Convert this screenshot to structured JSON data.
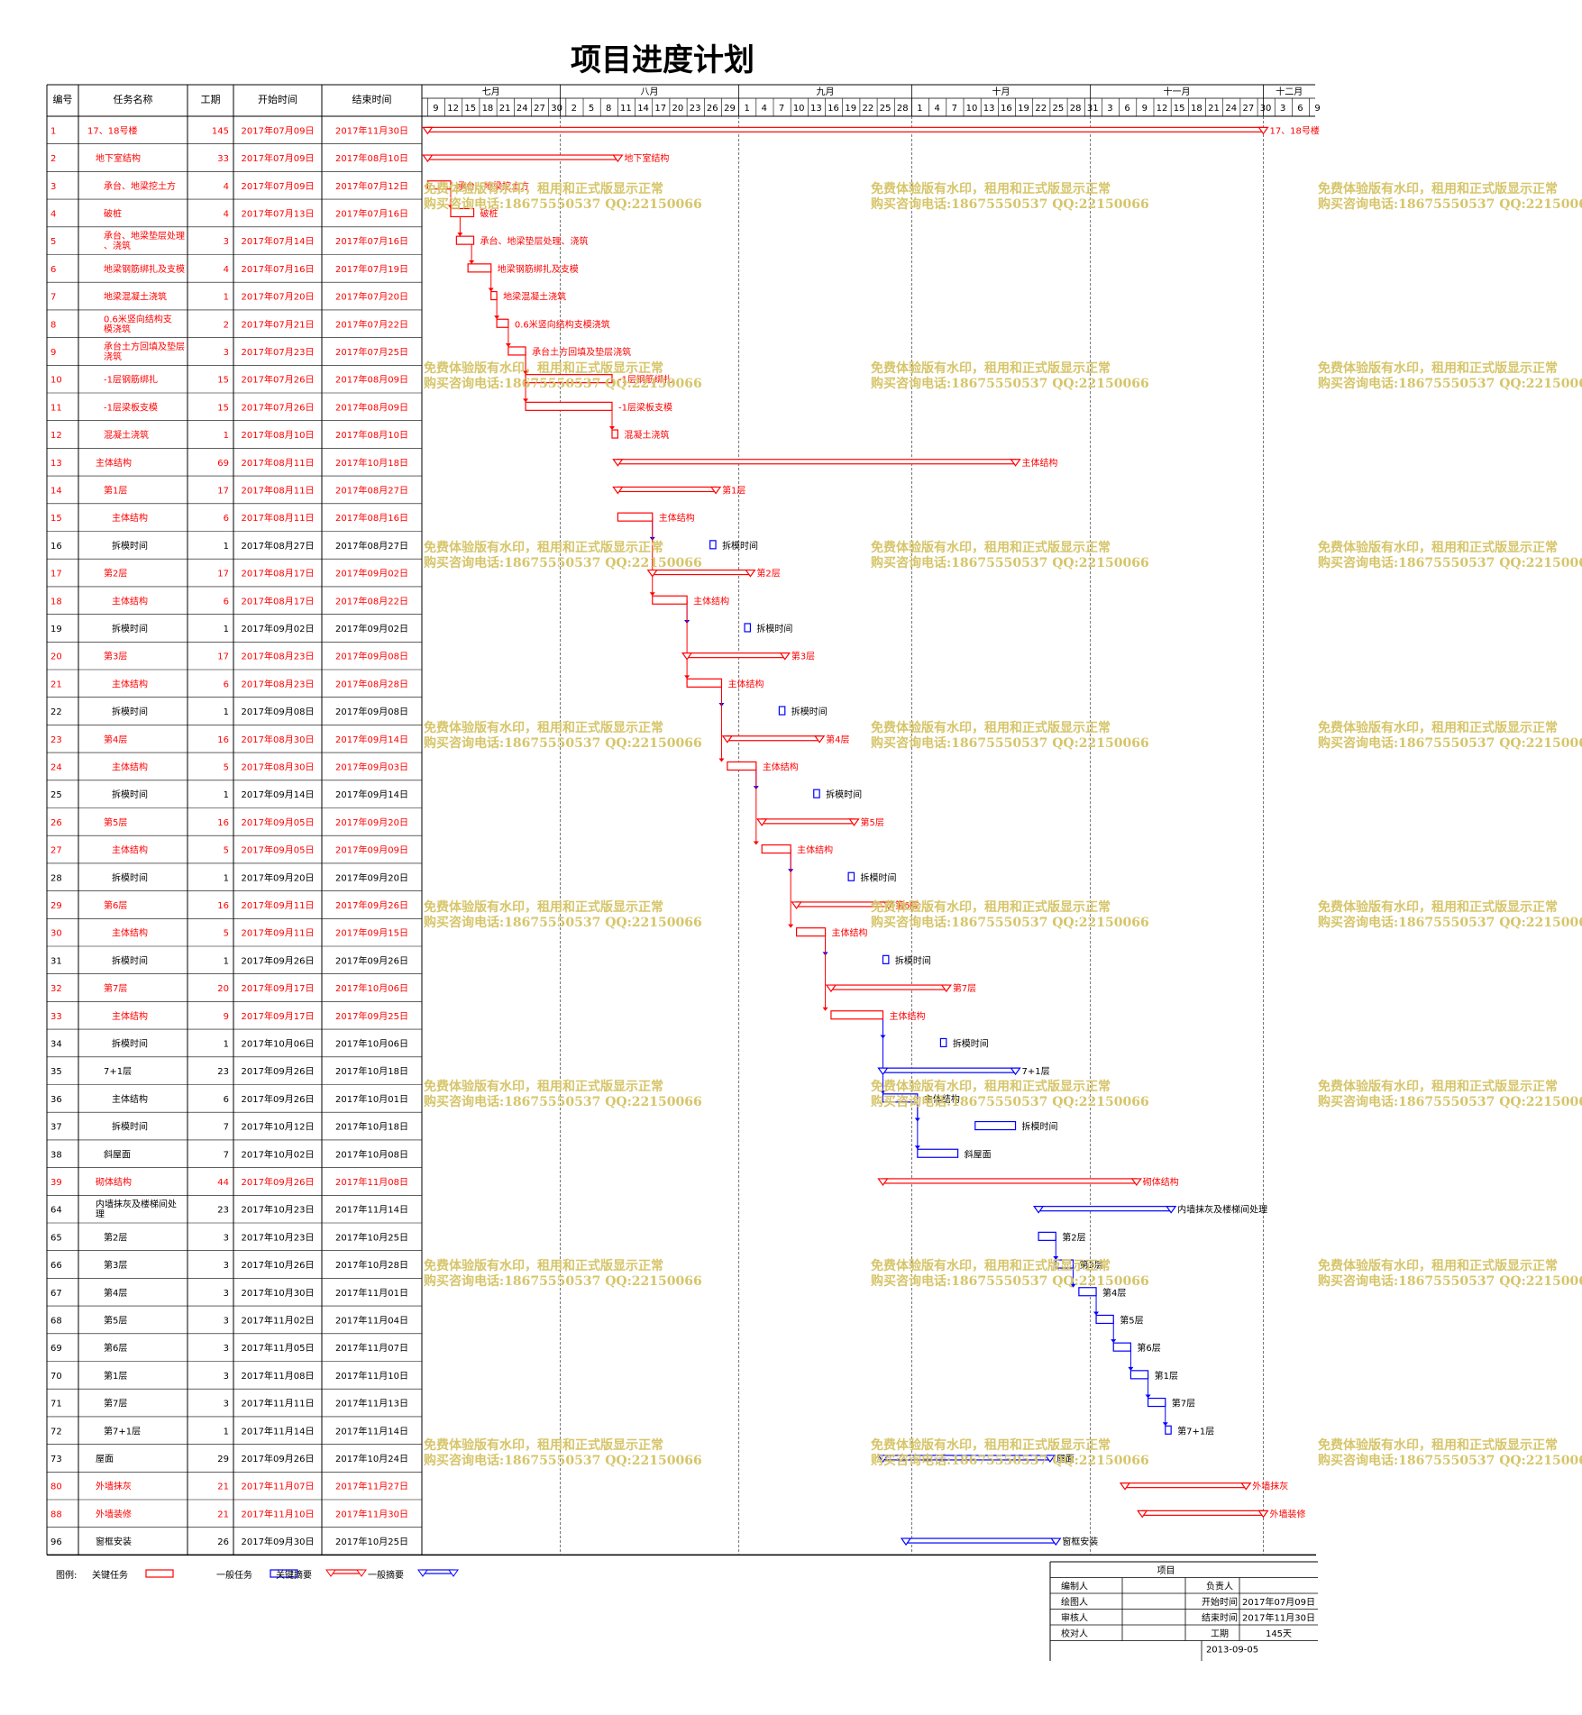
{
  "title": "项目进度计划",
  "columns": [
    "编号",
    "任务名称",
    "工期",
    "开始时间",
    "结束时间"
  ],
  "months": [
    {
      "label": "七月",
      "days": [
        "9",
        "12",
        "15",
        "18",
        "21",
        "24",
        "27",
        "30"
      ]
    },
    {
      "label": "八月",
      "days": [
        "2",
        "5",
        "8",
        "11",
        "14",
        "17",
        "20",
        "23",
        "26",
        "29"
      ]
    },
    {
      "label": "九月",
      "days": [
        "1",
        "4",
        "7",
        "10",
        "13",
        "16",
        "19",
        "22",
        "25",
        "28"
      ]
    },
    {
      "label": "十月",
      "days": [
        "1",
        "4",
        "7",
        "10",
        "13",
        "16",
        "19",
        "22",
        "25",
        "28",
        "31"
      ]
    },
    {
      "label": "十一月",
      "days": [
        "3",
        "6",
        "9",
        "12",
        "15",
        "18",
        "21",
        "24",
        "27",
        "30"
      ]
    },
    {
      "label": "十二月",
      "days": [
        "3",
        "6",
        "9"
      ]
    }
  ],
  "colors": {
    "critical": "#ff0000",
    "normal": "#0000ff",
    "grid": "#000000",
    "watermark": "#d6c56a"
  },
  "watermark": [
    "免费体验版有水印，租用和正式版显示正常",
    "购买咨询电话:18675550537 QQ:22150066"
  ],
  "chart_data": {
    "type": "gantt",
    "title": "项目进度计划",
    "x_axis_start": "2017-07-08",
    "x_axis_end": "2017-12-10",
    "tasks": [
      {
        "id": "1",
        "name": "17、18号楼",
        "dur": "145",
        "start": "2017年07月09日",
        "end": "2017年11月30日",
        "s": "2017-07-09",
        "e": "2017-11-30",
        "kind": "summary",
        "crit": true,
        "indent": 0,
        "label": "17、18号楼"
      },
      {
        "id": "2",
        "name": "地下室结构",
        "dur": "33",
        "start": "2017年07月09日",
        "end": "2017年08月10日",
        "s": "2017-07-09",
        "e": "2017-08-10",
        "kind": "summary",
        "crit": true,
        "indent": 1,
        "label": "地下室结构"
      },
      {
        "id": "3",
        "name": "承台、地梁挖土方",
        "dur": "4",
        "start": "2017年07月09日",
        "end": "2017年07月12日",
        "s": "2017-07-09",
        "e": "2017-07-12",
        "kind": "task",
        "crit": true,
        "indent": 2,
        "label": "承台、地梁挖土方"
      },
      {
        "id": "4",
        "name": "破桩",
        "dur": "4",
        "start": "2017年07月13日",
        "end": "2017年07月16日",
        "s": "2017-07-13",
        "e": "2017-07-16",
        "kind": "task",
        "crit": true,
        "indent": 2,
        "label": "破桩"
      },
      {
        "id": "5",
        "name": "承台、地梁垫层处理、浇筑",
        "dur": "3",
        "start": "2017年07月14日",
        "end": "2017年07月16日",
        "s": "2017-07-14",
        "e": "2017-07-16",
        "kind": "task",
        "crit": true,
        "indent": 2,
        "label": "承台、地梁垫层处理、浇筑"
      },
      {
        "id": "6",
        "name": "地梁钢筋绑扎及支模",
        "dur": "4",
        "start": "2017年07月16日",
        "end": "2017年07月19日",
        "s": "2017-07-16",
        "e": "2017-07-19",
        "kind": "task",
        "crit": true,
        "indent": 2,
        "label": "地梁钢筋绑扎及支模"
      },
      {
        "id": "7",
        "name": "地梁混凝土浇筑",
        "dur": "1",
        "start": "2017年07月20日",
        "end": "2017年07月20日",
        "s": "2017-07-20",
        "e": "2017-07-20",
        "kind": "task",
        "crit": true,
        "indent": 2,
        "label": "地梁混凝土浇筑"
      },
      {
        "id": "8",
        "name": "0.6米竖向结构支模浇筑",
        "dur": "2",
        "start": "2017年07月21日",
        "end": "2017年07月22日",
        "s": "2017-07-21",
        "e": "2017-07-22",
        "kind": "task",
        "crit": true,
        "indent": 2,
        "label": "0.6米竖向结构支模浇筑"
      },
      {
        "id": "9",
        "name": "承台土方回填及垫层浇筑",
        "dur": "3",
        "start": "2017年07月23日",
        "end": "2017年07月25日",
        "s": "2017-07-23",
        "e": "2017-07-25",
        "kind": "task",
        "crit": true,
        "indent": 2,
        "label": "承台土方回填及垫层浇筑"
      },
      {
        "id": "10",
        "name": "-1层钢筋绑扎",
        "dur": "15",
        "start": "2017年07月26日",
        "end": "2017年08月09日",
        "s": "2017-07-26",
        "e": "2017-08-09",
        "kind": "task",
        "crit": true,
        "indent": 2,
        "label": "-1层钢筋绑扎"
      },
      {
        "id": "11",
        "name": "-1层梁板支模",
        "dur": "15",
        "start": "2017年07月26日",
        "end": "2017年08月09日",
        "s": "2017-07-26",
        "e": "2017-08-09",
        "kind": "task",
        "crit": true,
        "indent": 2,
        "label": "-1层梁板支模"
      },
      {
        "id": "12",
        "name": "混凝土浇筑",
        "dur": "1",
        "start": "2017年08月10日",
        "end": "2017年08月10日",
        "s": "2017-08-10",
        "e": "2017-08-10",
        "kind": "task",
        "crit": true,
        "indent": 2,
        "label": "混凝土浇筑"
      },
      {
        "id": "13",
        "name": "主体结构",
        "dur": "69",
        "start": "2017年08月11日",
        "end": "2017年10月18日",
        "s": "2017-08-11",
        "e": "2017-10-18",
        "kind": "summary",
        "crit": true,
        "indent": 1,
        "label": "主体结构"
      },
      {
        "id": "14",
        "name": "第1层",
        "dur": "17",
        "start": "2017年08月11日",
        "end": "2017年08月27日",
        "s": "2017-08-11",
        "e": "2017-08-27",
        "kind": "summary",
        "crit": true,
        "indent": 2,
        "label": "第1层"
      },
      {
        "id": "15",
        "name": "主体结构",
        "dur": "6",
        "start": "2017年08月11日",
        "end": "2017年08月16日",
        "s": "2017-08-11",
        "e": "2017-08-16",
        "kind": "task",
        "crit": true,
        "indent": 3,
        "label": "主体结构"
      },
      {
        "id": "16",
        "name": "拆模时间",
        "dur": "1",
        "start": "2017年08月27日",
        "end": "2017年08月27日",
        "s": "2017-08-27",
        "e": "2017-08-27",
        "kind": "task",
        "crit": false,
        "indent": 3,
        "label": "拆模时间"
      },
      {
        "id": "17",
        "name": "第2层",
        "dur": "17",
        "start": "2017年08月17日",
        "end": "2017年09月02日",
        "s": "2017-08-17",
        "e": "2017-09-02",
        "kind": "summary",
        "crit": true,
        "indent": 2,
        "label": "第2层"
      },
      {
        "id": "18",
        "name": "主体结构",
        "dur": "6",
        "start": "2017年08月17日",
        "end": "2017年08月22日",
        "s": "2017-08-17",
        "e": "2017-08-22",
        "kind": "task",
        "crit": true,
        "indent": 3,
        "label": "主体结构"
      },
      {
        "id": "19",
        "name": "拆模时间",
        "dur": "1",
        "start": "2017年09月02日",
        "end": "2017年09月02日",
        "s": "2017-09-02",
        "e": "2017-09-02",
        "kind": "task",
        "crit": false,
        "indent": 3,
        "label": "拆模时间"
      },
      {
        "id": "20",
        "name": "第3层",
        "dur": "17",
        "start": "2017年08月23日",
        "end": "2017年09月08日",
        "s": "2017-08-23",
        "e": "2017-09-08",
        "kind": "summary",
        "crit": true,
        "indent": 2,
        "label": "第3层"
      },
      {
        "id": "21",
        "name": "主体结构",
        "dur": "6",
        "start": "2017年08月23日",
        "end": "2017年08月28日",
        "s": "2017-08-23",
        "e": "2017-08-28",
        "kind": "task",
        "crit": true,
        "indent": 3,
        "label": "主体结构"
      },
      {
        "id": "22",
        "name": "拆模时间",
        "dur": "1",
        "start": "2017年09月08日",
        "end": "2017年09月08日",
        "s": "2017-09-08",
        "e": "2017-09-08",
        "kind": "task",
        "crit": false,
        "indent": 3,
        "label": "拆模时间"
      },
      {
        "id": "23",
        "name": "第4层",
        "dur": "16",
        "start": "2017年08月30日",
        "end": "2017年09月14日",
        "s": "2017-08-30",
        "e": "2017-09-14",
        "kind": "summary",
        "crit": true,
        "indent": 2,
        "label": "第4层"
      },
      {
        "id": "24",
        "name": "主体结构",
        "dur": "5",
        "start": "2017年08月30日",
        "end": "2017年09月03日",
        "s": "2017-08-30",
        "e": "2017-09-03",
        "kind": "task",
        "crit": true,
        "indent": 3,
        "label": "主体结构"
      },
      {
        "id": "25",
        "name": "拆模时间",
        "dur": "1",
        "start": "2017年09月14日",
        "end": "2017年09月14日",
        "s": "2017-09-14",
        "e": "2017-09-14",
        "kind": "task",
        "crit": false,
        "indent": 3,
        "label": "拆模时间"
      },
      {
        "id": "26",
        "name": "第5层",
        "dur": "16",
        "start": "2017年09月05日",
        "end": "2017年09月20日",
        "s": "2017-09-05",
        "e": "2017-09-20",
        "kind": "summary",
        "crit": true,
        "indent": 2,
        "label": "第5层"
      },
      {
        "id": "27",
        "name": "主体结构",
        "dur": "5",
        "start": "2017年09月05日",
        "end": "2017年09月09日",
        "s": "2017-09-05",
        "e": "2017-09-09",
        "kind": "task",
        "crit": true,
        "indent": 3,
        "label": "主体结构"
      },
      {
        "id": "28",
        "name": "拆模时间",
        "dur": "1",
        "start": "2017年09月20日",
        "end": "2017年09月20日",
        "s": "2017-09-20",
        "e": "2017-09-20",
        "kind": "task",
        "crit": false,
        "indent": 3,
        "label": "拆模时间"
      },
      {
        "id": "29",
        "name": "第6层",
        "dur": "16",
        "start": "2017年09月11日",
        "end": "2017年09月26日",
        "s": "2017-09-11",
        "e": "2017-09-26",
        "kind": "summary",
        "crit": true,
        "indent": 2,
        "label": "第6层"
      },
      {
        "id": "30",
        "name": "主体结构",
        "dur": "5",
        "start": "2017年09月11日",
        "end": "2017年09月15日",
        "s": "2017-09-11",
        "e": "2017-09-15",
        "kind": "task",
        "crit": true,
        "indent": 3,
        "label": "主体结构"
      },
      {
        "id": "31",
        "name": "拆模时间",
        "dur": "1",
        "start": "2017年09月26日",
        "end": "2017年09月26日",
        "s": "2017-09-26",
        "e": "2017-09-26",
        "kind": "task",
        "crit": false,
        "indent": 3,
        "label": "拆模时间"
      },
      {
        "id": "32",
        "name": "第7层",
        "dur": "20",
        "start": "2017年09月17日",
        "end": "2017年10月06日",
        "s": "2017-09-17",
        "e": "2017-10-06",
        "kind": "summary",
        "crit": true,
        "indent": 2,
        "label": "第7层"
      },
      {
        "id": "33",
        "name": "主体结构",
        "dur": "9",
        "start": "2017年09月17日",
        "end": "2017年09月25日",
        "s": "2017-09-17",
        "e": "2017-09-25",
        "kind": "task",
        "crit": true,
        "indent": 3,
        "label": "主体结构"
      },
      {
        "id": "34",
        "name": "拆模时间",
        "dur": "1",
        "start": "2017年10月06日",
        "end": "2017年10月06日",
        "s": "2017-10-06",
        "e": "2017-10-06",
        "kind": "task",
        "crit": false,
        "indent": 3,
        "label": "拆模时间"
      },
      {
        "id": "35",
        "name": "7+1层",
        "dur": "23",
        "start": "2017年09月26日",
        "end": "2017年10月18日",
        "s": "2017-09-26",
        "e": "2017-10-18",
        "kind": "summary",
        "crit": false,
        "indent": 2,
        "label": "7+1层"
      },
      {
        "id": "36",
        "name": "主体结构",
        "dur": "6",
        "start": "2017年09月26日",
        "end": "2017年10月01日",
        "s": "2017-09-26",
        "e": "2017-10-01",
        "kind": "task",
        "crit": false,
        "indent": 3,
        "label": "主体结构"
      },
      {
        "id": "37",
        "name": "拆模时间",
        "dur": "7",
        "start": "2017年10月12日",
        "end": "2017年10月18日",
        "s": "2017-10-12",
        "e": "2017-10-18",
        "kind": "task",
        "crit": false,
        "indent": 3,
        "label": "拆模时间"
      },
      {
        "id": "38",
        "name": "斜屋面",
        "dur": "7",
        "start": "2017年10月02日",
        "end": "2017年10月08日",
        "s": "2017-10-02",
        "e": "2017-10-08",
        "kind": "task",
        "crit": false,
        "indent": 2,
        "label": "斜屋面"
      },
      {
        "id": "39",
        "name": "砌体结构",
        "dur": "44",
        "start": "2017年09月26日",
        "end": "2017年11月08日",
        "s": "2017-09-26",
        "e": "2017-11-08",
        "kind": "summary",
        "crit": true,
        "indent": 1,
        "label": "砌体结构"
      },
      {
        "id": "64",
        "name": "内墙抹灰及楼梯间处理",
        "dur": "23",
        "start": "2017年10月23日",
        "end": "2017年11月14日",
        "s": "2017-10-23",
        "e": "2017-11-14",
        "kind": "summary",
        "crit": false,
        "indent": 1,
        "label": "内墙抹灰及楼梯间处理"
      },
      {
        "id": "65",
        "name": "第2层",
        "dur": "3",
        "start": "2017年10月23日",
        "end": "2017年10月25日",
        "s": "2017-10-23",
        "e": "2017-10-25",
        "kind": "task",
        "crit": false,
        "indent": 2,
        "label": "第2层"
      },
      {
        "id": "66",
        "name": "第3层",
        "dur": "3",
        "start": "2017年10月26日",
        "end": "2017年10月28日",
        "s": "2017-10-26",
        "e": "2017-10-28",
        "kind": "task",
        "crit": false,
        "indent": 2,
        "label": "第3层"
      },
      {
        "id": "67",
        "name": "第4层",
        "dur": "3",
        "start": "2017年10月30日",
        "end": "2017年11月01日",
        "s": "2017-10-30",
        "e": "2017-11-01",
        "kind": "task",
        "crit": false,
        "indent": 2,
        "label": "第4层"
      },
      {
        "id": "68",
        "name": "第5层",
        "dur": "3",
        "start": "2017年11月02日",
        "end": "2017年11月04日",
        "s": "2017-11-02",
        "e": "2017-11-04",
        "kind": "task",
        "crit": false,
        "indent": 2,
        "label": "第5层"
      },
      {
        "id": "69",
        "name": "第6层",
        "dur": "3",
        "start": "2017年11月05日",
        "end": "2017年11月07日",
        "s": "2017-11-05",
        "e": "2017-11-07",
        "kind": "task",
        "crit": false,
        "indent": 2,
        "label": "第6层"
      },
      {
        "id": "70",
        "name": "第1层",
        "dur": "3",
        "start": "2017年11月08日",
        "end": "2017年11月10日",
        "s": "2017-11-08",
        "e": "2017-11-10",
        "kind": "task",
        "crit": false,
        "indent": 2,
        "label": "第1层"
      },
      {
        "id": "71",
        "name": "第7层",
        "dur": "3",
        "start": "2017年11月11日",
        "end": "2017年11月13日",
        "s": "2017-11-11",
        "e": "2017-11-13",
        "kind": "task",
        "crit": false,
        "indent": 2,
        "label": "第7层"
      },
      {
        "id": "72",
        "name": "第7+1层",
        "dur": "1",
        "start": "2017年11月14日",
        "end": "2017年11月14日",
        "s": "2017-11-14",
        "e": "2017-11-14",
        "kind": "task",
        "crit": false,
        "indent": 2,
        "label": "第7+1层"
      },
      {
        "id": "73",
        "name": "屋面",
        "dur": "29",
        "start": "2017年09月26日",
        "end": "2017年10月24日",
        "s": "2017-09-26",
        "e": "2017-10-24",
        "kind": "summary",
        "crit": false,
        "indent": 1,
        "label": "屋面"
      },
      {
        "id": "80",
        "name": "外墙抹灰",
        "dur": "21",
        "start": "2017年11月07日",
        "end": "2017年11月27日",
        "s": "2017-11-07",
        "e": "2017-11-27",
        "kind": "summary",
        "crit": true,
        "indent": 1,
        "label": "外墙抹灰"
      },
      {
        "id": "88",
        "name": "外墙装修",
        "dur": "21",
        "start": "2017年11月10日",
        "end": "2017年11月30日",
        "s": "2017-11-10",
        "e": "2017-11-30",
        "kind": "summary",
        "crit": true,
        "indent": 1,
        "label": "外墙装修"
      },
      {
        "id": "96",
        "name": "窗框安装",
        "dur": "26",
        "start": "2017年09月30日",
        "end": "2017年10月25日",
        "s": "2017-09-30",
        "e": "2017-10-25",
        "kind": "summary",
        "crit": false,
        "indent": 1,
        "label": "窗框安装"
      }
    ],
    "links": [
      [
        "3",
        "4"
      ],
      [
        "4",
        "5"
      ],
      [
        "5",
        "6"
      ],
      [
        "6",
        "7"
      ],
      [
        "7",
        "8"
      ],
      [
        "8",
        "9"
      ],
      [
        "9",
        "10"
      ],
      [
        "9",
        "11"
      ],
      [
        "11",
        "12"
      ],
      [
        "15",
        "16"
      ],
      [
        "15",
        "18"
      ],
      [
        "18",
        "19"
      ],
      [
        "18",
        "21"
      ],
      [
        "21",
        "22"
      ],
      [
        "21",
        "24"
      ],
      [
        "24",
        "25"
      ],
      [
        "24",
        "27"
      ],
      [
        "27",
        "28"
      ],
      [
        "27",
        "30"
      ],
      [
        "30",
        "31"
      ],
      [
        "30",
        "33"
      ],
      [
        "33",
        "34"
      ],
      [
        "33",
        "36"
      ],
      [
        "36",
        "37"
      ],
      [
        "36",
        "38"
      ],
      [
        "65",
        "66"
      ],
      [
        "66",
        "67"
      ],
      [
        "67",
        "68"
      ],
      [
        "68",
        "69"
      ],
      [
        "69",
        "70"
      ],
      [
        "70",
        "71"
      ],
      [
        "71",
        "72"
      ]
    ]
  },
  "legend": {
    "prefix": "图例:",
    "items": [
      {
        "label": "关键任务",
        "type": "bar",
        "crit": true
      },
      {
        "label": "一般任务",
        "type": "bar",
        "crit": false
      },
      {
        "label": "关键摘要",
        "type": "summary",
        "crit": true
      },
      {
        "label": "一般摘要",
        "type": "summary",
        "crit": false
      }
    ]
  },
  "info_box": {
    "title": "项目",
    "rows": [
      [
        "编制人",
        "",
        "负责人",
        ""
      ],
      [
        "绘图人",
        "",
        "开始时间",
        "2017年07月09日"
      ],
      [
        "审核人",
        "",
        "结束时间",
        "2017年11月30日"
      ],
      [
        "校对人",
        "",
        "工期",
        "145天"
      ]
    ],
    "date": "2013-09-05"
  }
}
